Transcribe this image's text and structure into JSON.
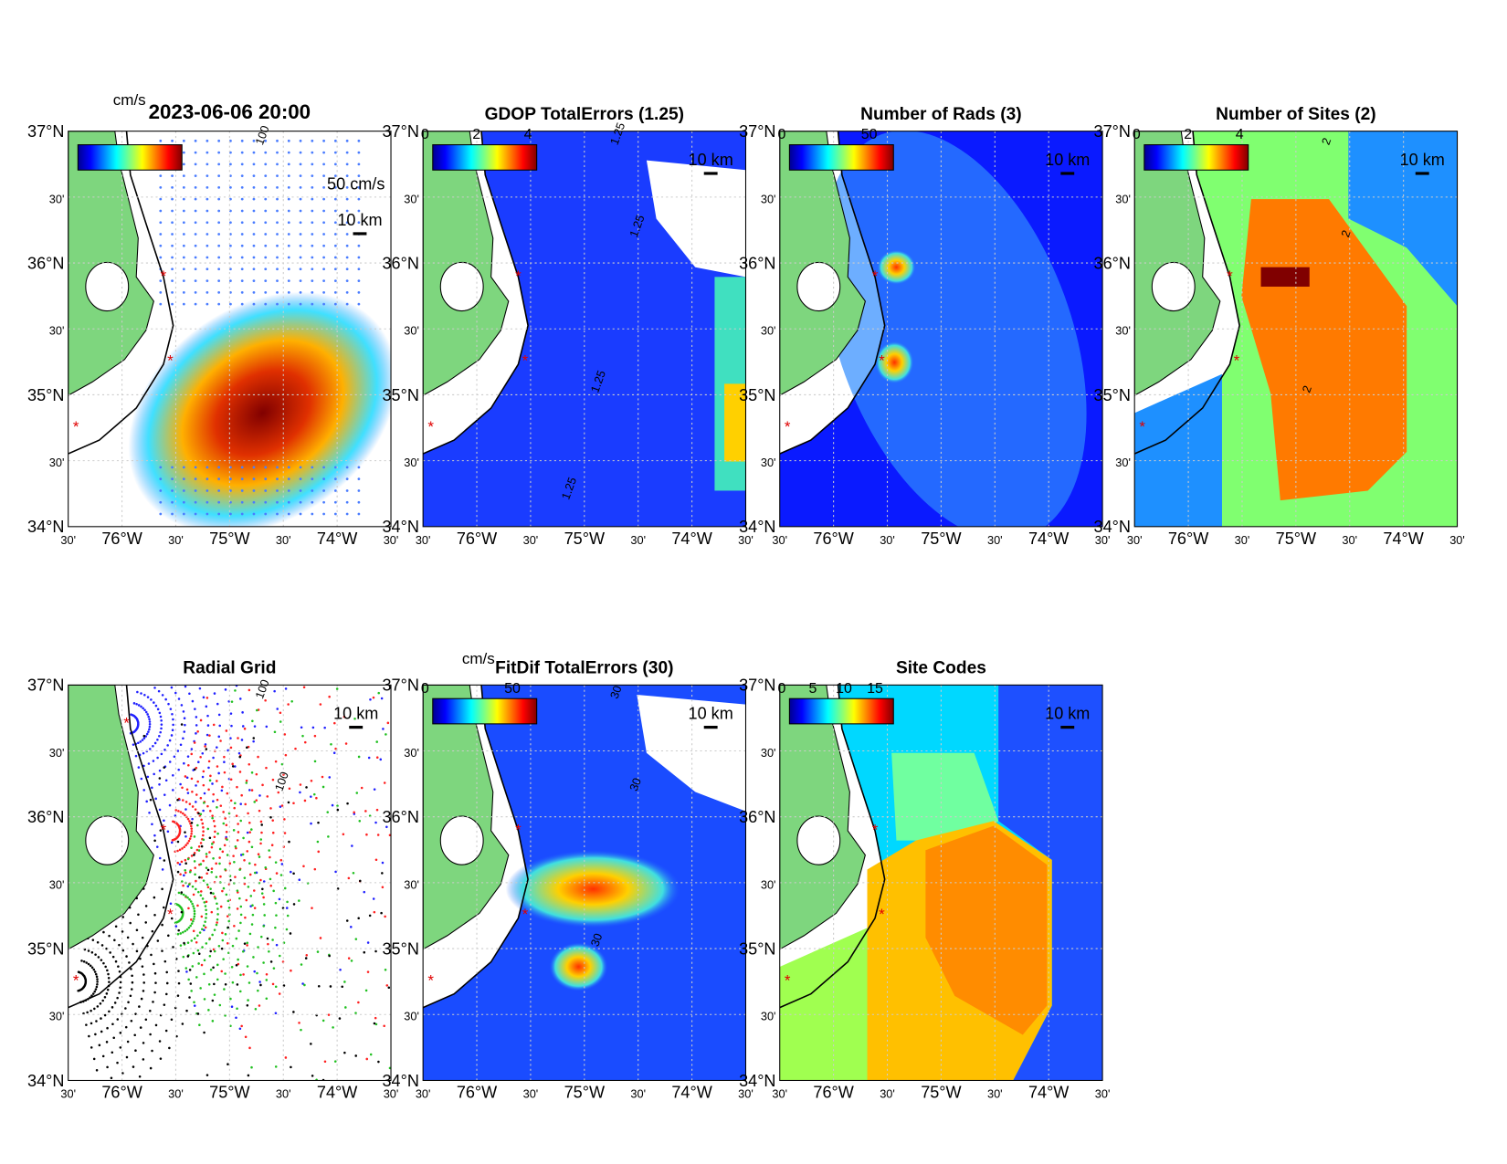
{
  "axes": {
    "lat_labels": [
      "37°N",
      "30'",
      "36°N",
      "30'",
      "35°N",
      "30'",
      "34°N"
    ],
    "lon_labels": [
      "30'",
      "76°W",
      "30'",
      "75°W",
      "30'",
      "74°W",
      "30'"
    ]
  },
  "panels": [
    {
      "title": "2023-06-06 20:00",
      "colorbar_unit": "cm/s",
      "scale_labels": [
        "50 cm/s",
        "10 km"
      ],
      "contour_labels": [
        "100"
      ]
    },
    {
      "title": "GDOP TotalErrors (1.25)",
      "colorbar_ticks": [
        "0",
        "2",
        "4"
      ],
      "scale_labels": [
        "10 km"
      ],
      "contour_labels": [
        "1.25",
        "1.25",
        "1.25",
        "1.25"
      ]
    },
    {
      "title": "Number of Rads (3)",
      "colorbar_ticks": [
        "0",
        "50"
      ],
      "scale_labels": [
        "10 km"
      ]
    },
    {
      "title": "Number of Sites (2)",
      "colorbar_ticks": [
        "0",
        "2",
        "4"
      ],
      "scale_labels": [
        "10 km"
      ],
      "contour_labels": [
        "2",
        "2",
        "2"
      ]
    },
    {
      "title": "Radial Grid",
      "scale_labels": [
        "10 km"
      ],
      "contour_labels": [
        "100",
        "100"
      ]
    },
    {
      "title": "FitDif TotalErrors (30)",
      "colorbar_unit": "cm/s",
      "colorbar_ticks": [
        "0",
        "50"
      ],
      "scale_labels": [
        "10 km"
      ],
      "contour_labels": [
        "30",
        "30",
        "30"
      ]
    },
    {
      "title": "Site Codes",
      "colorbar_ticks": [
        "0",
        "5",
        "10",
        "15"
      ],
      "scale_labels": [
        "10 km"
      ]
    }
  ]
}
